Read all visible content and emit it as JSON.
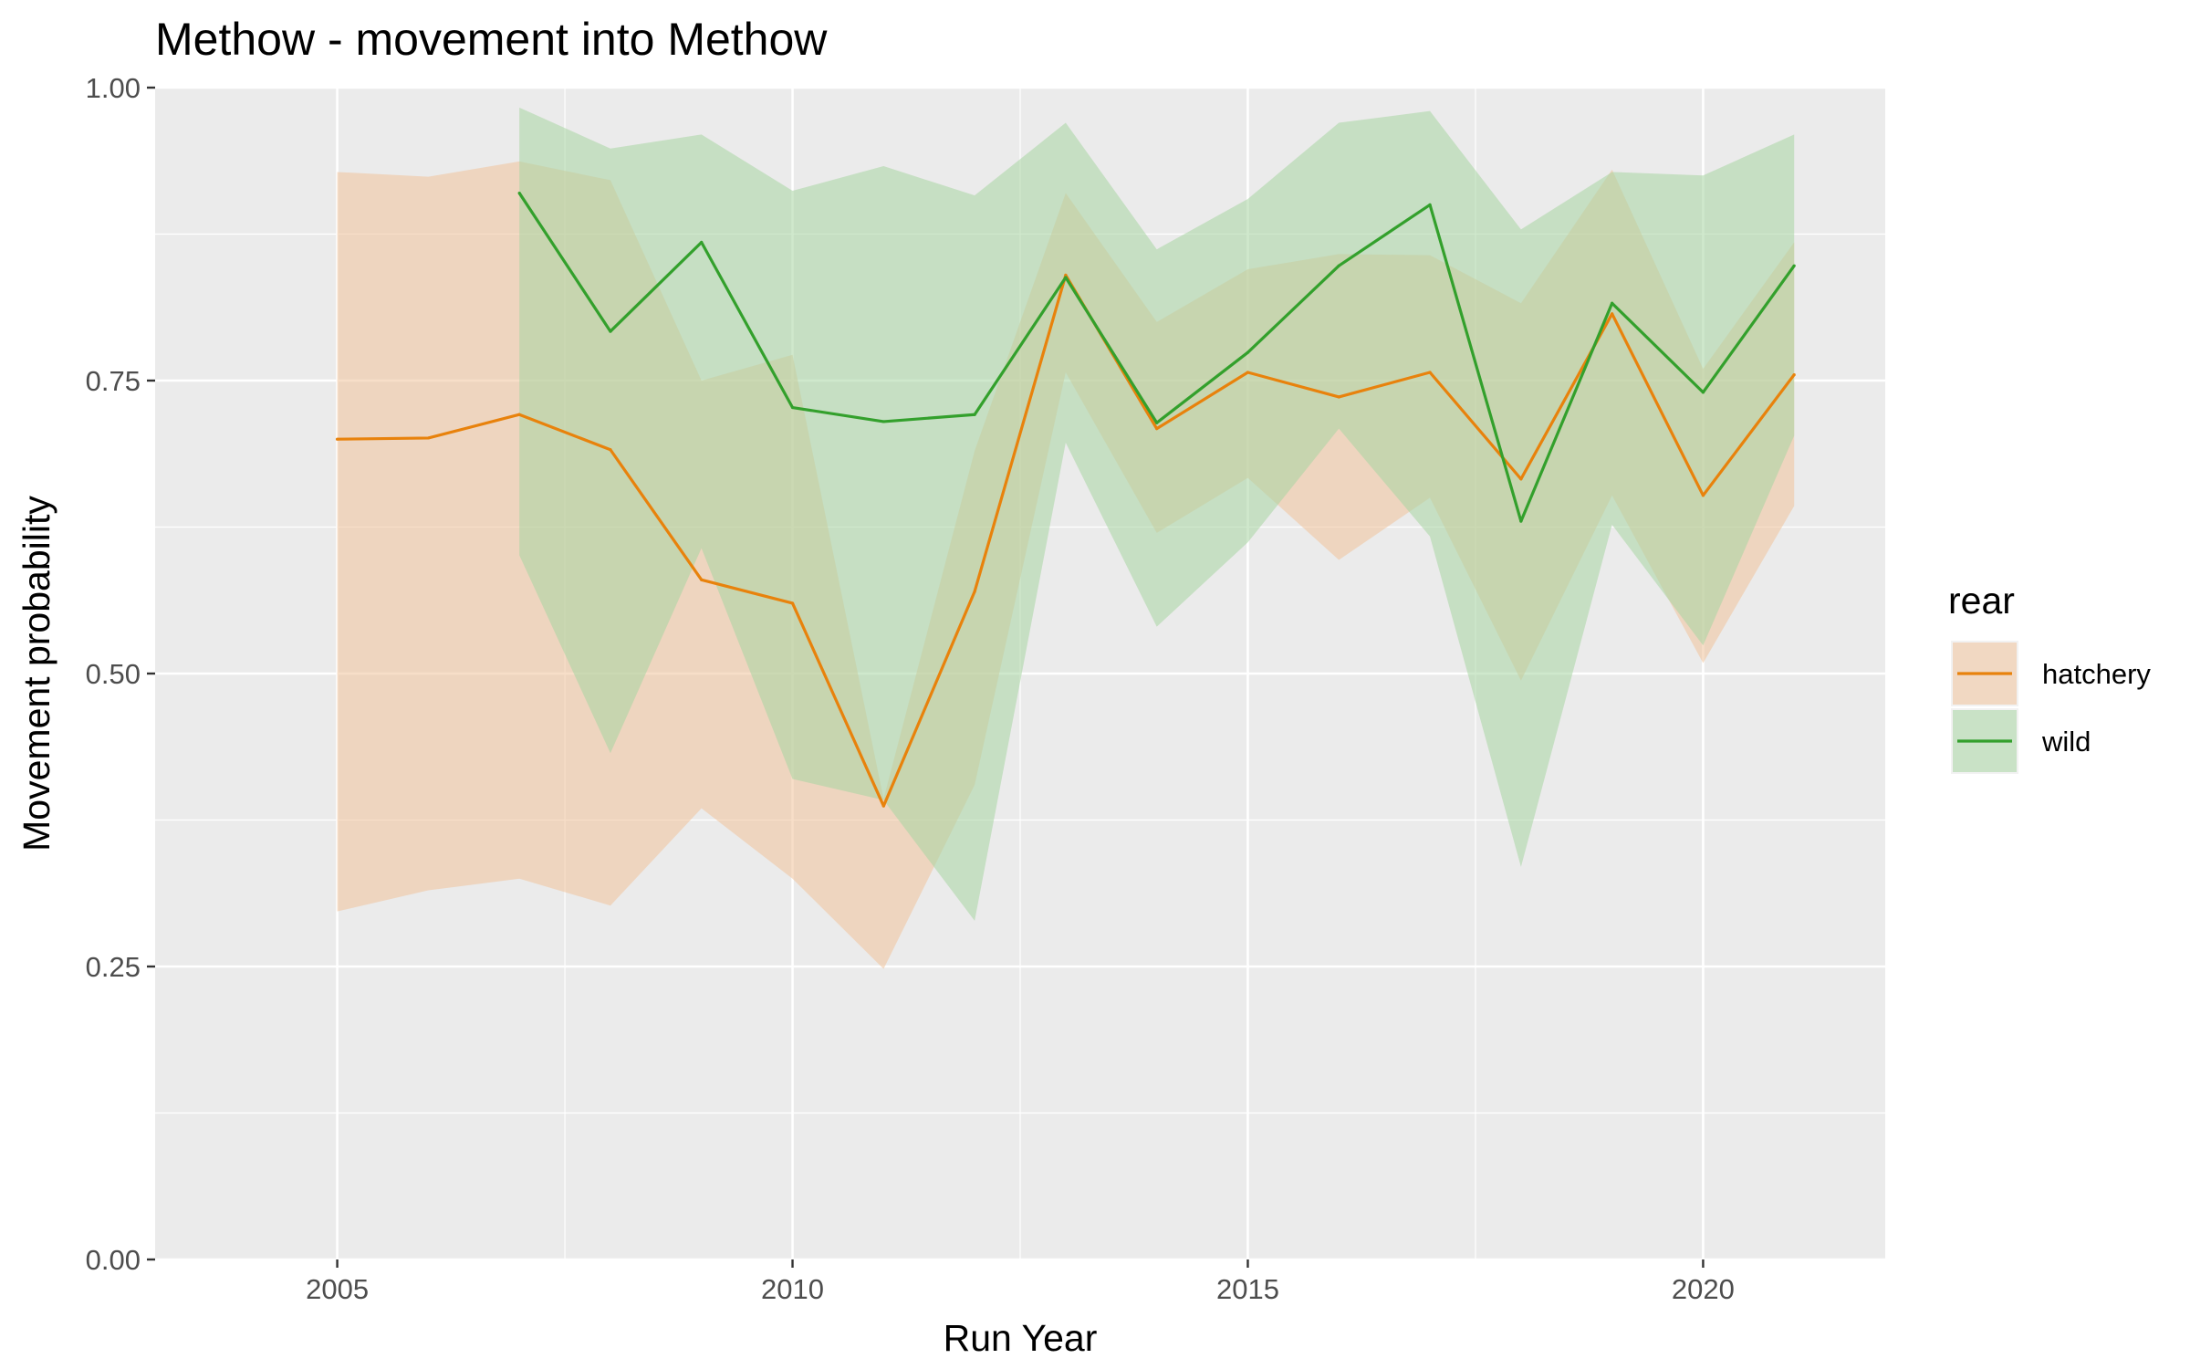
{
  "chart_data": {
    "type": "line",
    "title": "Methow - movement into Methow",
    "xlabel": "Run Year",
    "ylabel": "Movement probability",
    "xlim": [
      2003,
      2022
    ],
    "ylim": [
      0,
      1
    ],
    "x_ticks": [
      2005,
      2010,
      2015,
      2020
    ],
    "x_tick_labels": [
      "2005",
      "2010",
      "2015",
      "2020"
    ],
    "y_ticks": [
      0,
      0.25,
      0.5,
      0.75,
      1
    ],
    "y_tick_labels": [
      "0.00",
      "0.25",
      "0.50",
      "0.75",
      "1.00"
    ],
    "grid": true,
    "legend": {
      "title": "rear",
      "position": "right"
    },
    "series": [
      {
        "name": "hatchery",
        "color": "#E8820C",
        "fill": "#F1C29A",
        "x": [
          2005,
          2006,
          2007,
          2008,
          2009,
          2010,
          2011,
          2012,
          2013,
          2014,
          2015,
          2016,
          2017,
          2018,
          2019,
          2020,
          2021
        ],
        "values": [
          0.7,
          0.701,
          0.721,
          0.691,
          0.58,
          0.56,
          0.387,
          0.57,
          0.84,
          0.709,
          0.757,
          0.736,
          0.757,
          0.666,
          0.807,
          0.652,
          0.755
        ],
        "lower": [
          0.297,
          0.315,
          0.325,
          0.302,
          0.385,
          0.325,
          0.248,
          0.405,
          0.757,
          0.62,
          0.667,
          0.597,
          0.65,
          0.494,
          0.652,
          0.509,
          0.643
        ],
        "upper": [
          0.928,
          0.924,
          0.937,
          0.921,
          0.75,
          0.772,
          0.393,
          0.69,
          0.91,
          0.8,
          0.845,
          0.858,
          0.857,
          0.816,
          0.93,
          0.76,
          0.868
        ]
      },
      {
        "name": "wild",
        "color": "#33A02C",
        "fill": "#A8D6A2",
        "x": [
          2007,
          2008,
          2009,
          2010,
          2011,
          2012,
          2013,
          2014,
          2015,
          2016,
          2017,
          2018,
          2019,
          2020,
          2021
        ],
        "values": [
          0.91,
          0.792,
          0.868,
          0.727,
          0.715,
          0.721,
          0.838,
          0.714,
          0.774,
          0.848,
          0.9,
          0.63,
          0.816,
          0.74,
          0.848
        ],
        "lower": [
          0.601,
          0.432,
          0.607,
          0.41,
          0.392,
          0.289,
          0.697,
          0.54,
          0.612,
          0.709,
          0.617,
          0.335,
          0.627,
          0.524,
          0.703
        ],
        "upper": [
          0.983,
          0.948,
          0.96,
          0.912,
          0.933,
          0.908,
          0.97,
          0.862,
          0.905,
          0.97,
          0.98,
          0.879,
          0.928,
          0.925,
          0.96
        ]
      }
    ]
  }
}
